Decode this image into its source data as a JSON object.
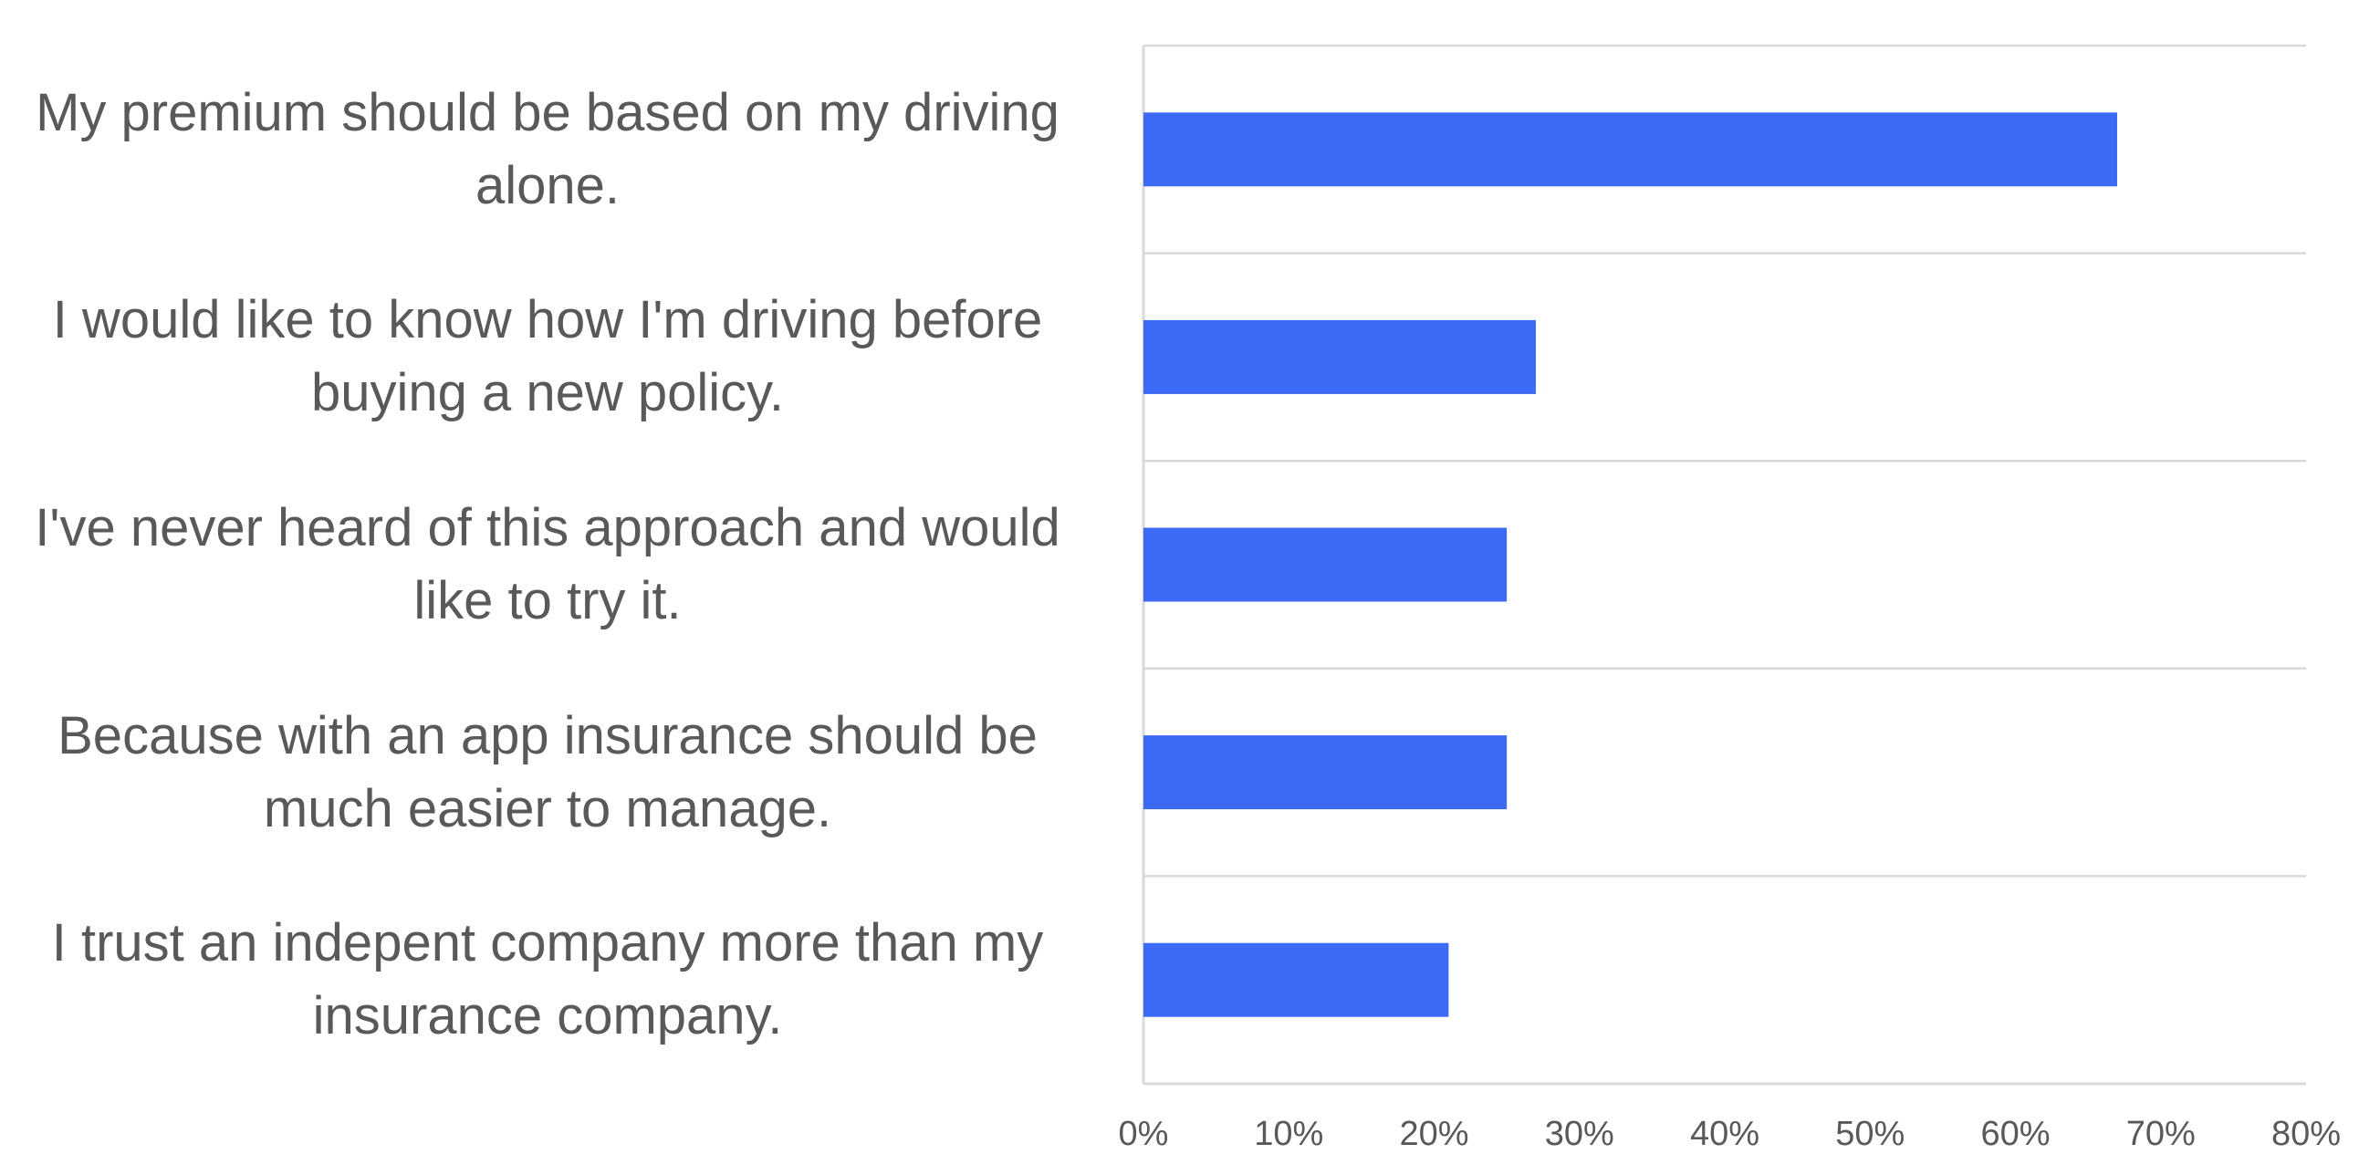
{
  "chart_data": {
    "type": "bar",
    "orientation": "horizontal",
    "categories": [
      "My premium should be based on my driving alone.",
      "I would like to know how I'm driving before buying a new policy.",
      "I've never heard of this approach and would like to try it.",
      "Because with an app insurance should be much easier to manage.",
      "I trust an indepent company more than my insurance company."
    ],
    "category_lines": [
      [
        "My premium should be based on my driving",
        "alone."
      ],
      [
        "I would like to know how I'm driving before",
        "buying a new policy."
      ],
      [
        "I've never heard of this approach and would",
        "like to try it."
      ],
      [
        "Because with an app insurance should be",
        "much easier to manage."
      ],
      [
        "I trust an indepent company more than my",
        "insurance company."
      ]
    ],
    "values": [
      0.67,
      0.27,
      0.25,
      0.25,
      0.21
    ],
    "xlim": [
      0,
      0.8
    ],
    "x_ticks": [
      0,
      0.1,
      0.2,
      0.3,
      0.4,
      0.5,
      0.6,
      0.7,
      0.8
    ],
    "x_tick_labels": [
      "0%",
      "10%",
      "20%",
      "30%",
      "40%",
      "50%",
      "60%",
      "70%",
      "80%"
    ],
    "title": "",
    "xlabel": "",
    "ylabel": "",
    "grid": "horizontal category separators",
    "legend": "none",
    "bar_color": "#3D6AF5",
    "axis_color": "#D9D9D9",
    "text_color": "#595959"
  }
}
